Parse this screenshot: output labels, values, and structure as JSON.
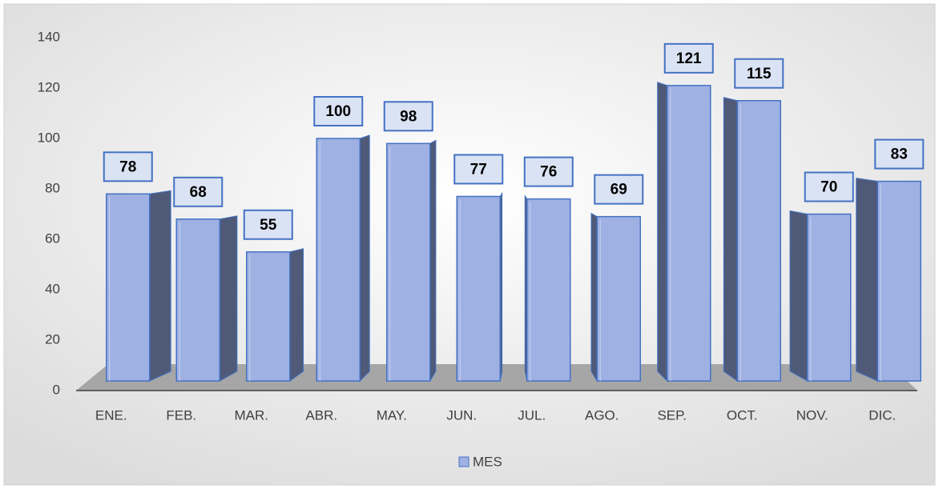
{
  "chart_data": {
    "type": "bar",
    "categories": [
      "ENE.",
      "FEB.",
      "MAR.",
      "ABR.",
      "MAY.",
      "JUN.",
      "JUL.",
      "AGO.",
      "SEP.",
      "OCT.",
      "NOV.",
      "DIC."
    ],
    "series": [
      {
        "name": "MES",
        "color": "#9fb1e3",
        "values": [
          78,
          68,
          55,
          100,
          98,
          77,
          76,
          69,
          121,
          115,
          70,
          83
        ]
      }
    ],
    "ylim": [
      0,
      140
    ],
    "yticks": [
      0,
      20,
      40,
      60,
      80,
      100,
      120,
      140
    ],
    "legend": "bottom",
    "data_labels": true
  }
}
